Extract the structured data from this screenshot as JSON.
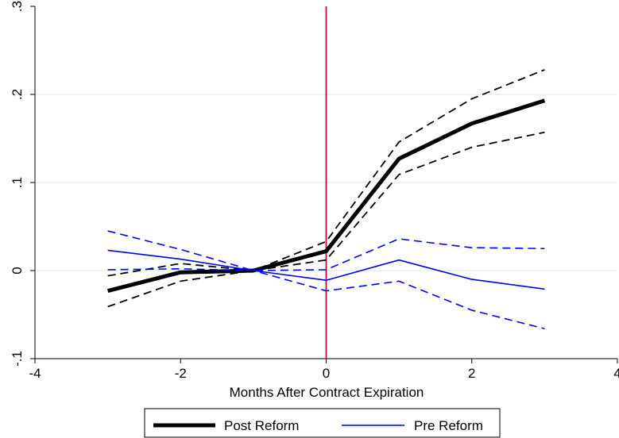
{
  "chart_data": {
    "type": "line",
    "title": "",
    "xlabel": "Months After Contract Expiration",
    "ylabel": "",
    "xlim": [
      -4,
      4
    ],
    "ylim": [
      -0.1,
      0.3
    ],
    "x_ticks": [
      -4,
      -2,
      0,
      2,
      4
    ],
    "x_tick_labels": [
      "-4",
      "-2",
      "0",
      "2",
      "4"
    ],
    "y_ticks": [
      -0.1,
      0,
      0.1,
      0.2,
      0.3
    ],
    "y_tick_labels": [
      "-.1",
      "0",
      ".1",
      ".2",
      ".3"
    ],
    "grid": true,
    "vertical_reference_line": 0,
    "legend_position": "bottom",
    "x": [
      -3,
      -2,
      -1,
      0,
      1,
      2,
      3
    ],
    "series": [
      {
        "name": "Post Reform",
        "color": "#000000",
        "style": "solid-thick",
        "values": [
          -0.023,
          -0.002,
          0.0,
          0.022,
          0.127,
          0.167,
          0.193
        ],
        "ci_lower": [
          -0.041,
          -0.012,
          0.0,
          0.012,
          0.109,
          0.14,
          0.157
        ],
        "ci_upper": [
          -0.006,
          0.008,
          0.0,
          0.033,
          0.146,
          0.195,
          0.228
        ]
      },
      {
        "name": "Pre Reform",
        "color": "#0000ff",
        "style": "solid-thin",
        "values": [
          0.023,
          0.013,
          0.0,
          -0.011,
          0.012,
          -0.01,
          -0.021
        ],
        "ci_lower": [
          0.001,
          0.002,
          0.0,
          -0.023,
          -0.012,
          -0.045,
          -0.066
        ],
        "ci_upper": [
          0.045,
          0.024,
          0.0,
          0.001,
          0.036,
          0.026,
          0.025
        ]
      }
    ],
    "colors": {
      "reference_line": "#b0103a",
      "grid": "#dce9e9",
      "axis": "#000000"
    }
  }
}
